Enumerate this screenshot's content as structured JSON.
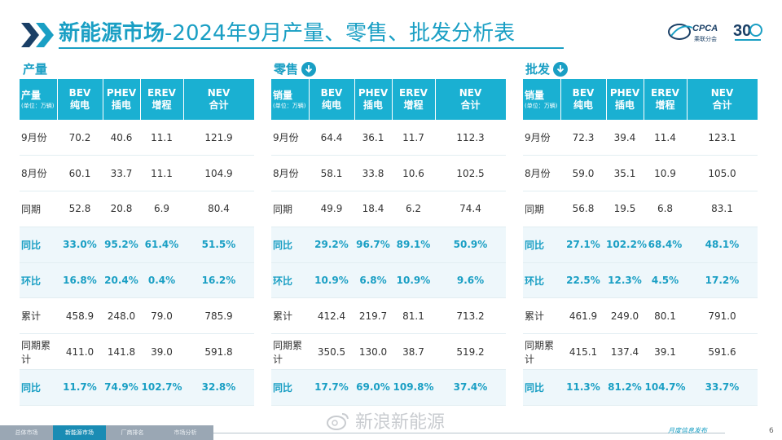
{
  "header": {
    "title_bold": "新能源市场",
    "title_rest": "-2024年9月产量、零售、批发分析表",
    "logo_text": "CPCA",
    "logo_sub": "乘联分会",
    "anniversary": "30"
  },
  "colors": {
    "accent": "#1a9fc4",
    "header_bg": "#1ab0d2",
    "highlight_row": "#eef7fb"
  },
  "sections": [
    {
      "label": "产量",
      "has_icon": false,
      "first_header": "产量",
      "unit": "(单位：万辆)",
      "columns": [
        [
          "BEV",
          "纯电"
        ],
        [
          "PHEV",
          "插电"
        ],
        [
          "EREV",
          "增程"
        ],
        [
          "NEV",
          "合计"
        ]
      ],
      "rows": [
        {
          "label": "9月份",
          "values": [
            "70.2",
            "40.6",
            "11.1",
            "121.9"
          ],
          "highlight": false
        },
        {
          "label": "8月份",
          "values": [
            "60.1",
            "33.7",
            "11.1",
            "104.9"
          ],
          "highlight": false
        },
        {
          "label": "同期",
          "values": [
            "52.8",
            "20.8",
            "6.9",
            "80.4"
          ],
          "highlight": false
        },
        {
          "label": "同比",
          "values": [
            "33.0%",
            "95.2%",
            "61.4%",
            "51.5%"
          ],
          "highlight": true
        },
        {
          "label": "环比",
          "values": [
            "16.8%",
            "20.4%",
            "0.4%",
            "16.2%"
          ],
          "highlight": true
        },
        {
          "label": "累计",
          "values": [
            "458.9",
            "248.0",
            "79.0",
            "785.9"
          ],
          "highlight": false
        },
        {
          "label": "同期累计",
          "values": [
            "411.0",
            "141.8",
            "39.0",
            "591.8"
          ],
          "highlight": false
        },
        {
          "label": "同比",
          "values": [
            "11.7%",
            "74.9%",
            "102.7%",
            "32.8%"
          ],
          "highlight": true
        }
      ]
    },
    {
      "label": "零售",
      "has_icon": true,
      "first_header": "销量",
      "unit": "(单位：万辆)",
      "columns": [
        [
          "BEV",
          "纯电"
        ],
        [
          "PHEV",
          "插电"
        ],
        [
          "EREV",
          "增程"
        ],
        [
          "NEV",
          "合计"
        ]
      ],
      "rows": [
        {
          "label": "9月份",
          "values": [
            "64.4",
            "36.1",
            "11.7",
            "112.3"
          ],
          "highlight": false
        },
        {
          "label": "8月份",
          "values": [
            "58.1",
            "33.8",
            "10.6",
            "102.5"
          ],
          "highlight": false
        },
        {
          "label": "同期",
          "values": [
            "49.9",
            "18.4",
            "6.2",
            "74.4"
          ],
          "highlight": false
        },
        {
          "label": "同比",
          "values": [
            "29.2%",
            "96.7%",
            "89.1%",
            "50.9%"
          ],
          "highlight": true
        },
        {
          "label": "环比",
          "values": [
            "10.9%",
            "6.8%",
            "10.9%",
            "9.6%"
          ],
          "highlight": true
        },
        {
          "label": "累计",
          "values": [
            "412.4",
            "219.7",
            "81.1",
            "713.2"
          ],
          "highlight": false
        },
        {
          "label": "同期累计",
          "values": [
            "350.5",
            "130.0",
            "38.7",
            "519.2"
          ],
          "highlight": false
        },
        {
          "label": "同比",
          "values": [
            "17.7%",
            "69.0%",
            "109.8%",
            "37.4%"
          ],
          "highlight": true
        }
      ]
    },
    {
      "label": "批发",
      "has_icon": true,
      "first_header": "销量",
      "unit": "(单位：万辆)",
      "columns": [
        [
          "BEV",
          "纯电"
        ],
        [
          "PHEV",
          "插电"
        ],
        [
          "EREV",
          "增程"
        ],
        [
          "NEV",
          "合计"
        ]
      ],
      "rows": [
        {
          "label": "9月份",
          "values": [
            "72.3",
            "39.4",
            "11.4",
            "123.1"
          ],
          "highlight": false
        },
        {
          "label": "8月份",
          "values": [
            "59.0",
            "35.1",
            "10.9",
            "105.0"
          ],
          "highlight": false
        },
        {
          "label": "同期",
          "values": [
            "56.8",
            "19.5",
            "6.8",
            "83.1"
          ],
          "highlight": false
        },
        {
          "label": "同比",
          "values": [
            "27.1%",
            "102.2%",
            "68.4%",
            "48.1%"
          ],
          "highlight": true
        },
        {
          "label": "环比",
          "values": [
            "22.5%",
            "12.3%",
            "4.5%",
            "17.2%"
          ],
          "highlight": true
        },
        {
          "label": "累计",
          "values": [
            "461.9",
            "249.0",
            "80.1",
            "791.0"
          ],
          "highlight": false
        },
        {
          "label": "同期累计",
          "values": [
            "415.1",
            "137.4",
            "39.1",
            "591.6"
          ],
          "highlight": false
        },
        {
          "label": "同比",
          "values": [
            "11.3%",
            "81.2%",
            "104.7%",
            "33.7%"
          ],
          "highlight": true
        }
      ]
    }
  ],
  "footer": {
    "tabs": [
      {
        "label": "总体市场",
        "active": false
      },
      {
        "label": "新能源市场",
        "active": true
      },
      {
        "label": "厂商排名",
        "active": false
      },
      {
        "label": "市场分析",
        "active": false
      }
    ],
    "caption": "月度信息发布",
    "page": "6"
  },
  "watermark": {
    "text": "新浪新能源"
  }
}
